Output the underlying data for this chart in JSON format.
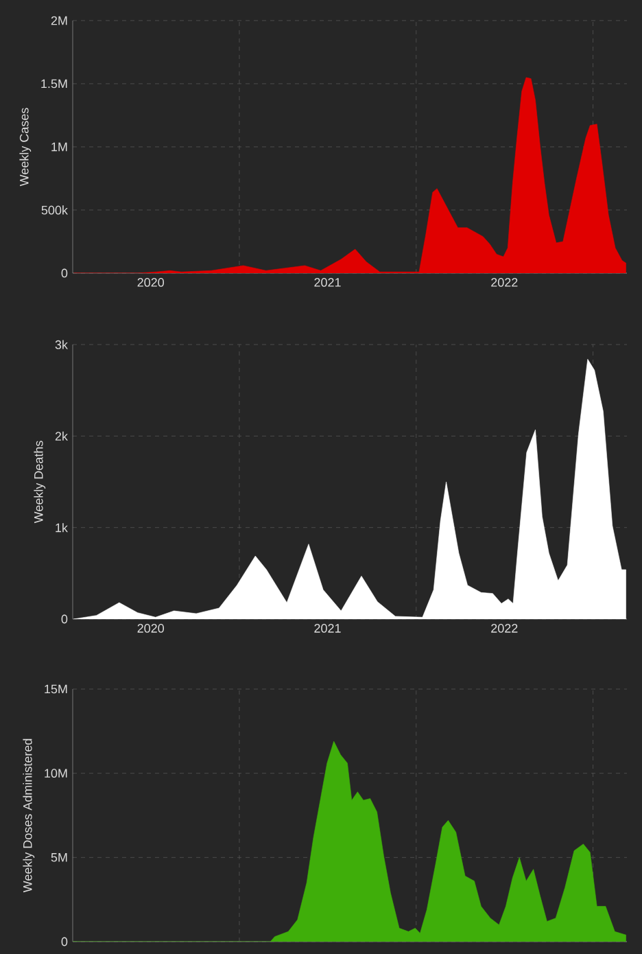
{
  "chart_data": [
    {
      "type": "area",
      "ylabel": "Weekly Cases",
      "color": "#e00000",
      "grid": true,
      "x": [
        "2020-01-25",
        "2020-06-06",
        "2020-07-13",
        "2020-08-11",
        "2020-09-03",
        "2020-11-04",
        "2021-01-09",
        "2021-02-25",
        "2021-05-16",
        "2021-06-18",
        "2021-07-30",
        "2021-08-28",
        "2021-09-20",
        "2021-10-18",
        "2022-01-07",
        "2022-01-21",
        "2022-02-04",
        "2022-02-13",
        "2022-03-14",
        "2022-03-28",
        "2022-04-16",
        "2022-04-30",
        "2022-05-19",
        "2022-06-02",
        "2022-06-16",
        "2022-06-30",
        "2022-07-09",
        "2022-07-19",
        "2022-07-28",
        "2022-08-07",
        "2022-08-16",
        "2022-08-26",
        "2022-09-04",
        "2022-09-14",
        "2022-09-23",
        "2022-10-02",
        "2022-10-17",
        "2022-10-31",
        "2022-11-14",
        "2022-11-28",
        "2022-12-17",
        "2022-12-26",
        "2023-01-09",
        "2023-01-19",
        "2023-02-02",
        "2023-02-16",
        "2023-03-02",
        "2023-03-10"
      ],
      "values": [
        0,
        0,
        10000,
        20000,
        10000,
        20000,
        60000,
        20000,
        60000,
        20000,
        110000,
        190000,
        90000,
        10000,
        10000,
        310000,
        640000,
        670000,
        460000,
        360000,
        360000,
        330000,
        290000,
        230000,
        150000,
        130000,
        200000,
        710000,
        1070000,
        1440000,
        1550000,
        1540000,
        1370000,
        1000000,
        710000,
        460000,
        240000,
        250000,
        500000,
        750000,
        1070000,
        1170000,
        1180000,
        890000,
        460000,
        200000,
        100000,
        80000
      ],
      "xlim": [
        "2020-01-23",
        "2023-03-12"
      ],
      "ylim": [
        0,
        2000000
      ],
      "xticks": [
        {
          "value": "2020-07-02",
          "label": "2020"
        },
        {
          "value": "2021-01-01",
          "label": null
        },
        {
          "value": "2021-07-02",
          "label": "2021"
        },
        {
          "value": "2022-01-01",
          "label": null
        },
        {
          "value": "2022-07-02",
          "label": "2022"
        },
        {
          "value": "2023-01-01",
          "label": null
        }
      ],
      "yticks": [
        0,
        {
          "value": 500000,
          "label": "500k"
        },
        {
          "value": 1000000,
          "label": "1M"
        },
        {
          "value": 1500000,
          "label": "1.5M"
        },
        {
          "value": 2000000,
          "label": "2M"
        }
      ]
    },
    {
      "type": "area",
      "ylabel": "Weekly Deaths",
      "color": "#ffffff",
      "grid": true,
      "x": [
        "2020-01-25",
        "2020-03-12",
        "2020-04-28",
        "2020-06-05",
        "2020-07-12",
        "2020-08-19",
        "2020-10-04",
        "2020-11-20",
        "2020-12-27",
        "2021-02-03",
        "2021-02-26",
        "2021-04-09",
        "2021-05-24",
        "2021-06-23",
        "2021-07-30",
        "2021-09-10",
        "2021-10-13",
        "2021-11-19",
        "2022-01-14",
        "2022-02-06",
        "2022-02-20",
        "2022-03-04",
        "2022-03-30",
        "2022-04-17",
        "2022-05-15",
        "2022-06-08",
        "2022-06-26",
        "2022-07-10",
        "2022-07-20",
        "2022-07-29",
        "2022-08-17",
        "2022-09-04",
        "2022-09-18",
        "2022-10-02",
        "2022-10-21",
        "2022-11-09",
        "2022-12-02",
        "2022-12-21",
        "2023-01-04",
        "2023-01-22",
        "2023-02-10",
        "2023-03-01",
        "2023-03-10"
      ],
      "values": [
        0,
        40,
        180,
        70,
        20,
        90,
        60,
        120,
        370,
        690,
        540,
        180,
        820,
        320,
        90,
        470,
        190,
        30,
        20,
        320,
        1070,
        1500,
        720,
        370,
        290,
        280,
        170,
        220,
        170,
        720,
        1820,
        2070,
        1120,
        720,
        420,
        590,
        2020,
        2840,
        2720,
        2270,
        1020,
        540,
        540
      ],
      "xlim": [
        "2020-01-23",
        "2023-03-12"
      ],
      "ylim": [
        0,
        3000
      ],
      "xticks": [
        {
          "value": "2020-07-02",
          "label": "2020"
        },
        {
          "value": "2021-01-01",
          "label": null
        },
        {
          "value": "2021-07-02",
          "label": "2021"
        },
        {
          "value": "2022-01-01",
          "label": null
        },
        {
          "value": "2022-07-02",
          "label": "2022"
        },
        {
          "value": "2023-01-01",
          "label": null
        }
      ],
      "yticks": [
        0,
        {
          "value": 1000,
          "label": "1k"
        },
        {
          "value": 2000,
          "label": "2k"
        },
        {
          "value": 3000,
          "label": "3k"
        }
      ]
    },
    {
      "type": "area",
      "ylabel": "Weekly Doses Administered",
      "color": "#3fae0a",
      "grid": true,
      "tick_labels": "y",
      "x": [
        "2020-01-23",
        "2021-03-06",
        "2021-03-15",
        "2021-04-12",
        "2021-05-01",
        "2021-05-20",
        "2021-06-03",
        "2021-06-17",
        "2021-07-01",
        "2021-07-15",
        "2021-07-29",
        "2021-08-12",
        "2021-08-21",
        "2021-09-02",
        "2021-09-14",
        "2021-09-28",
        "2021-10-12",
        "2021-10-26",
        "2021-11-09",
        "2021-11-27",
        "2021-12-16",
        "2021-12-30",
        "2022-01-09",
        "2022-01-23",
        "2022-02-10",
        "2022-02-24",
        "2022-03-08",
        "2022-03-24",
        "2022-04-12",
        "2022-05-01",
        "2022-05-15",
        "2022-06-03",
        "2022-06-21",
        "2022-07-05",
        "2022-07-19",
        "2022-08-02",
        "2022-08-16",
        "2022-08-31",
        "2022-09-14",
        "2022-09-28",
        "2022-10-16",
        "2022-11-04",
        "2022-11-23",
        "2022-12-12",
        "2022-12-26",
        "2023-01-09",
        "2023-01-27",
        "2023-02-15",
        "2023-03-10"
      ],
      "values": [
        0,
        0,
        300000,
        600000,
        1300000,
        3500000,
        6200000,
        8400000,
        10600000,
        11900000,
        11100000,
        10600000,
        8400000,
        8900000,
        8400000,
        8500000,
        7700000,
        5100000,
        2900000,
        800000,
        600000,
        800000,
        500000,
        1900000,
        4600000,
        6800000,
        7200000,
        6500000,
        3900000,
        3600000,
        2100000,
        1400000,
        1000000,
        2100000,
        3800000,
        5000000,
        3600000,
        4300000,
        2700000,
        1200000,
        1400000,
        3200000,
        5400000,
        5800000,
        5300000,
        2100000,
        2100000,
        600000,
        400000
      ],
      "xlim": [
        "2020-01-23",
        "2023-03-12"
      ],
      "ylim": [
        0,
        15000000
      ],
      "xticks": [
        {
          "value": "2021-01-01",
          "label": null
        },
        {
          "value": "2022-01-01",
          "label": null
        },
        {
          "value": "2023-01-01",
          "label": null
        }
      ],
      "yticks": [
        0,
        {
          "value": 5000000,
          "label": "5M"
        },
        {
          "value": 10000000,
          "label": "10M"
        },
        {
          "value": 15000000,
          "label": "15M"
        }
      ]
    }
  ]
}
